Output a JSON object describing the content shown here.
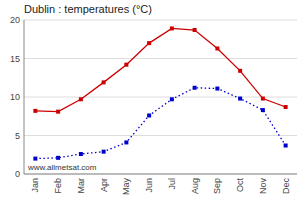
{
  "chart_data": {
    "type": "line",
    "title": "Dublin : temperatures (°C)",
    "categories": [
      "Jan",
      "Feb",
      "Mar",
      "Apr",
      "May",
      "Jun",
      "Jul",
      "Aug",
      "Sep",
      "Oct",
      "Nov",
      "Dec"
    ],
    "series": [
      {
        "color": "#cc0000",
        "line_style": "solid",
        "marker": "square",
        "values": [
          8.2,
          8.1,
          9.7,
          11.9,
          14.2,
          17.0,
          18.9,
          18.7,
          16.3,
          13.4,
          9.8,
          8.7
        ]
      },
      {
        "color": "#0000cc",
        "line_style": "dotted",
        "marker": "square",
        "values": [
          2.0,
          2.1,
          2.6,
          2.9,
          4.1,
          7.6,
          9.7,
          11.2,
          11.1,
          9.8,
          8.3,
          3.7
        ]
      }
    ],
    "ylim": [
      0,
      20
    ],
    "yticks": [
      0,
      5,
      10,
      15,
      20
    ],
    "grid": true,
    "annotations": [
      "www.allmetsat.com"
    ]
  }
}
